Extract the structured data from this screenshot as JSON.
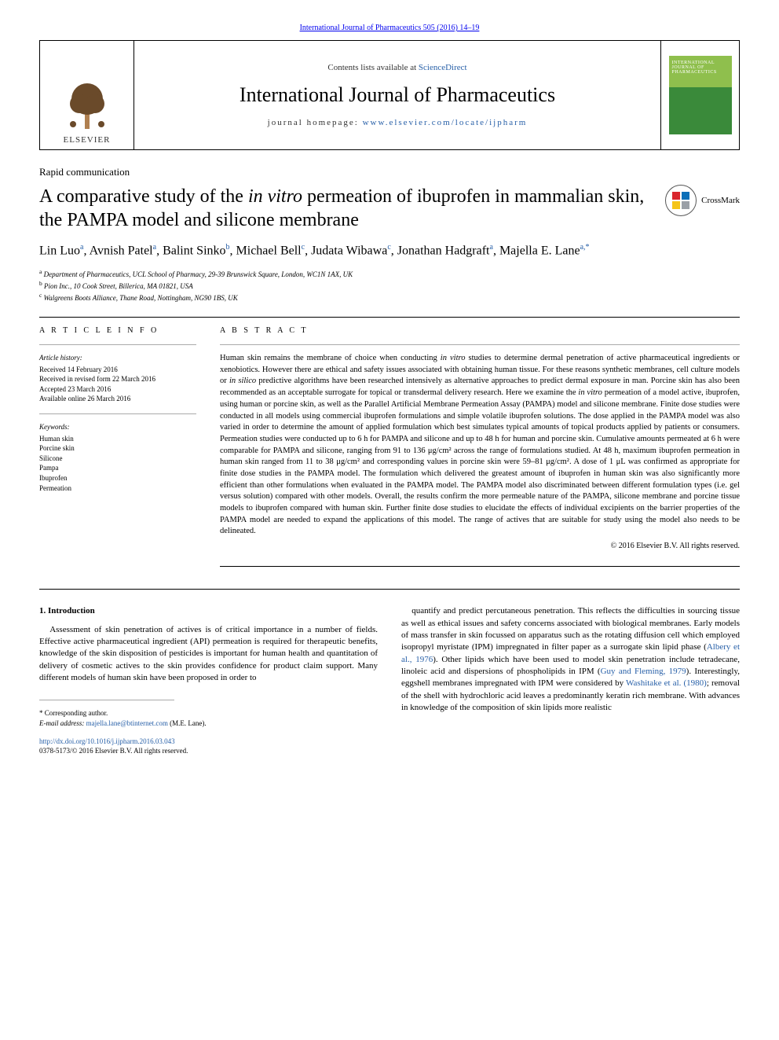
{
  "colors": {
    "link": "#2860a8",
    "text": "#000000",
    "cover_top": "#8fbf4d",
    "cover_bottom": "#3a8a3a",
    "crossmark_red": "#d9262e",
    "crossmark_blue": "#0b6fb8",
    "crossmark_yellow": "#f5c518",
    "crossmark_grey": "#9aa0a6"
  },
  "header": {
    "top_link": "International Journal of Pharmaceutics 505 (2016) 14–19",
    "contents_prefix": "Contents lists available at ",
    "contents_link": "ScienceDirect",
    "journal": "International Journal of Pharmaceutics",
    "homepage_prefix": "journal homepage: ",
    "homepage_link": "www.elsevier.com/locate/ijpharm",
    "elsevier": "ELSEVIER",
    "cover_text": "INTERNATIONAL JOURNAL OF PHARMACEUTICS"
  },
  "article": {
    "type": "Rapid communication",
    "title_pre": "A comparative study of the ",
    "title_italic": "in vitro",
    "title_post": " permeation of ibuprofen in mammalian skin, the PAMPA model and silicone membrane",
    "crossmark": "CrossMark"
  },
  "authors": {
    "a1_name": "Lin Luo",
    "a1_sup": "a",
    "a2_name": "Avnish Patel",
    "a2_sup": "a",
    "a3_name": "Balint Sinko",
    "a3_sup": "b",
    "a4_name": "Michael Bell",
    "a4_sup": "c",
    "a5_name": "Judata Wibawa",
    "a5_sup": "c",
    "a6_name": "Jonathan Hadgraft",
    "a6_sup": "a",
    "a7_name": "Majella E. Lane",
    "a7_sup": "a,*"
  },
  "affiliations": {
    "a": "Department of Pharmaceutics, UCL School of Pharmacy, 29-39 Brunswick Square, London, WC1N 1AX, UK",
    "b": "Pion Inc., 10 Cook Street, Billerica, MA 01821, USA",
    "c": "Walgreens Boots Alliance, Thane Road, Nottingham, NG90 1BS, UK"
  },
  "info": {
    "heading": "A R T I C L E  I N F O",
    "history_label": "Article history:",
    "h1": "Received 14 February 2016",
    "h2": "Received in revised form 22 March 2016",
    "h3": "Accepted 23 March 2016",
    "h4": "Available online 26 March 2016",
    "keywords_label": "Keywords:",
    "k1": "Human skin",
    "k2": "Porcine skin",
    "k3": "Silicone",
    "k4": "Pampa",
    "k5": "Ibuprofen",
    "k6": "Permeation"
  },
  "abstract": {
    "heading": "A B S T R A C T",
    "body_html": "Human skin remains the membrane of choice when conducting <span class=\"italic\">in vitro</span> studies to determine dermal penetration of active pharmaceutical ingredients or xenobiotics. However there are ethical and safety issues associated with obtaining human tissue. For these reasons synthetic membranes, cell culture models or <span class=\"italic\">in silico</span> predictive algorithms have been researched intensively as alternative approaches to predict dermal exposure in man. Porcine skin has also been recommended as an acceptable surrogate for topical or transdermal delivery research. Here we examine the <span class=\"italic\">in vitro</span> permeation of a model active, ibuprofen, using human or porcine skin, as well as the Parallel Artificial Membrane Permeation Assay (PAMPA) model and silicone membrane. Finite dose studies were conducted in all models using commercial ibuprofen formulations and simple volatile ibuprofen solutions. The dose applied in the PAMPA model was also varied in order to determine the amount of applied formulation which best simulates typical amounts of topical products applied by patients or consumers. Permeation studies were conducted up to 6 h for PAMPA and silicone and up to 48 h for human and porcine skin. Cumulative amounts permeated at 6 h were comparable for PAMPA and silicone, ranging from 91 to 136 μg/cm² across the range of formulations studied. At 48 h, maximum ibuprofen permeation in human skin ranged from 11 to 38 μg/cm² and corresponding values in porcine skin were 59–81 μg/cm². A dose of 1 μL was confirmed as appropriate for finite dose studies in the PAMPA model. The formulation which delivered the greatest amount of ibuprofen in human skin was also significantly more efficient than other formulations when evaluated in the PAMPA model. The PAMPA model also discriminated between different formulation types (i.e. gel versus solution) compared with other models. Overall, the results confirm the more permeable nature of the PAMPA, silicone membrane and porcine tissue models to ibuprofen compared with human skin. Further finite dose studies to elucidate the effects of individual excipients on the barrier properties of the PAMPA model are needed to expand the applications of this model. The range of actives that are suitable for study using the model also needs to be delineated.",
    "copyright": "© 2016 Elsevier B.V. All rights reserved."
  },
  "body": {
    "section_heading": "1. Introduction",
    "left_para": "Assessment of skin penetration of actives is of critical importance in a number of fields. Effective active pharmaceutical ingredient (API) permeation is required for therapeutic benefits, knowledge of the skin disposition of pesticides is important for human health and quantitation of delivery of cosmetic actives to the skin provides confidence for product claim support. Many different models of human skin have been proposed in order to",
    "right_para_html": "quantify and predict percutaneous penetration. This reflects the difficulties in sourcing tissue as well as ethical issues and safety concerns associated with biological membranes. Early models of mass transfer in skin focussed on apparatus such as the rotating diffusion cell which employed isopropyl myristate (IPM) impregnated in filter paper as a surrogate skin lipid phase (<a href=\"#\">Albery et al., 1976</a>). Other lipids which have been used to model skin penetration include tetradecane, linoleic acid and dispersions of phospholipids in IPM (<a href=\"#\">Guy and Fleming, 1979</a>). Interestingly, eggshell membranes impregnated with IPM were considered by <a href=\"#\">Washitake et al. (1980)</a>; removal of the shell with hydrochloric acid leaves a predominantly keratin rich membrane. With advances in knowledge of the composition of skin lipids more realistic"
  },
  "footnotes": {
    "corr": "* Corresponding author.",
    "email_label": "E-mail address: ",
    "email": "majella.lane@btinternet.com",
    "email_post": " (M.E. Lane)."
  },
  "footer": {
    "doi": "http://dx.doi.org/10.1016/j.ijpharm.2016.03.043",
    "line2": "0378-5173/© 2016 Elsevier B.V. All rights reserved."
  }
}
